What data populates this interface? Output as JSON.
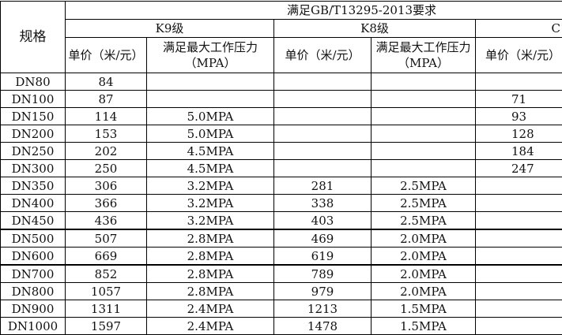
{
  "header": {
    "spec_label": "规格",
    "standard_label": "满足GB/T13295-2013要求",
    "grades": [
      "K9级",
      "K8级",
      "C"
    ],
    "price_label": "单价（米/元）",
    "pressure_label_k9": "满足最大工作压力（MPA）",
    "pressure_label_k8": "满足最大工作压力（MPA）"
  },
  "rows": [
    {
      "spec": "DN80",
      "k9_price": "84",
      "k9_pressure": "",
      "k8_price": "",
      "k8_pressure": "",
      "c_price": ""
    },
    {
      "spec": "DN100",
      "k9_price": "87",
      "k9_pressure": "",
      "k8_price": "",
      "k8_pressure": "",
      "c_price": "71"
    },
    {
      "spec": "DN150",
      "k9_price": "114",
      "k9_pressure": "5.0MPA",
      "k8_price": "",
      "k8_pressure": "",
      "c_price": "93"
    },
    {
      "spec": "DN200",
      "k9_price": "153",
      "k9_pressure": "5.0MPA",
      "k8_price": "",
      "k8_pressure": "",
      "c_price": "128"
    },
    {
      "spec": "DN250",
      "k9_price": "202",
      "k9_pressure": "4.5MPA",
      "k8_price": "",
      "k8_pressure": "",
      "c_price": "184"
    },
    {
      "spec": "DN300",
      "k9_price": "250",
      "k9_pressure": "4.5MPA",
      "k8_price": "",
      "k8_pressure": "",
      "c_price": "247"
    },
    {
      "spec": "DN350",
      "k9_price": "306",
      "k9_pressure": "3.2MPA",
      "k8_price": "281",
      "k8_pressure": "2.5MPA",
      "c_price": ""
    },
    {
      "spec": "DN400",
      "k9_price": "366",
      "k9_pressure": "3.2MPA",
      "k8_price": "338",
      "k8_pressure": "2.5MPA",
      "c_price": ""
    },
    {
      "spec": "DN450",
      "k9_price": "436",
      "k9_pressure": "3.2MPA",
      "k8_price": "403",
      "k8_pressure": "2.5MPA",
      "c_price": ""
    },
    {
      "spec": "DN500",
      "k9_price": "507",
      "k9_pressure": "2.8MPA",
      "k8_price": "469",
      "k8_pressure": "2.0MPA",
      "c_price": ""
    },
    {
      "spec": "DN600",
      "k9_price": "669",
      "k9_pressure": "2.8MPA",
      "k8_price": "619",
      "k8_pressure": "2.0MPA",
      "c_price": ""
    },
    {
      "spec": "DN700",
      "k9_price": "852",
      "k9_pressure": "2.8MPA",
      "k8_price": "789",
      "k8_pressure": "2.0MPA",
      "c_price": ""
    },
    {
      "spec": "DN800",
      "k9_price": "1057",
      "k9_pressure": "2.8MPA",
      "k8_price": "979",
      "k8_pressure": "2.0MPA",
      "c_price": ""
    },
    {
      "spec": "DN900",
      "k9_price": "1311",
      "k9_pressure": "2.4MPA",
      "k8_price": "1213",
      "k8_pressure": "1.5MPA",
      "c_price": ""
    },
    {
      "spec": "DN1000",
      "k9_price": "1597",
      "k9_pressure": "2.4MPA",
      "k8_price": "1478",
      "k8_pressure": "1.5MPA",
      "c_price": ""
    }
  ]
}
